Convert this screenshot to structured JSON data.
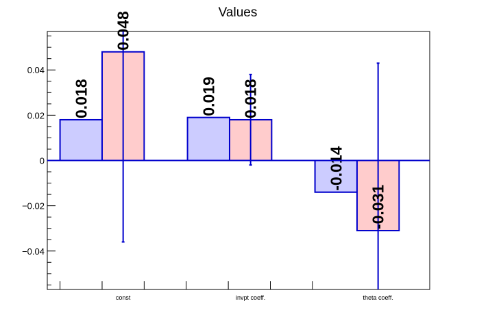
{
  "chart_data": {
    "type": "bar",
    "title": "Values",
    "categories": [
      "const",
      "invpt coeff.",
      "theta coeff."
    ],
    "ylim": [
      -0.057,
      0.057
    ],
    "yticks": [
      -0.04,
      -0.02,
      0,
      0.02,
      0.04
    ],
    "ytick_labels": [
      "−0.04",
      "−0.02",
      "0",
      "0.02",
      "0.04"
    ],
    "grid": false,
    "legend": "none",
    "series": [
      {
        "values": [
          0.018,
          0.019,
          -0.014
        ],
        "labels": [
          "0.018",
          "0.019",
          "-0.014"
        ],
        "errors": [
          0,
          0,
          0
        ],
        "fill": "#ccccff",
        "stroke": "#0000cc"
      },
      {
        "values": [
          0.048,
          0.018,
          -0.031
        ],
        "labels": [
          "0.048",
          "0.018",
          "-0.031"
        ],
        "errors": [
          0.084,
          0.02,
          0.074
        ],
        "fill": "#ffcccc",
        "stroke": "#0000cc"
      }
    ],
    "colors": {
      "axis": "#000000",
      "error_bar": "#0000cc",
      "zero_line": "#0000cc"
    }
  }
}
